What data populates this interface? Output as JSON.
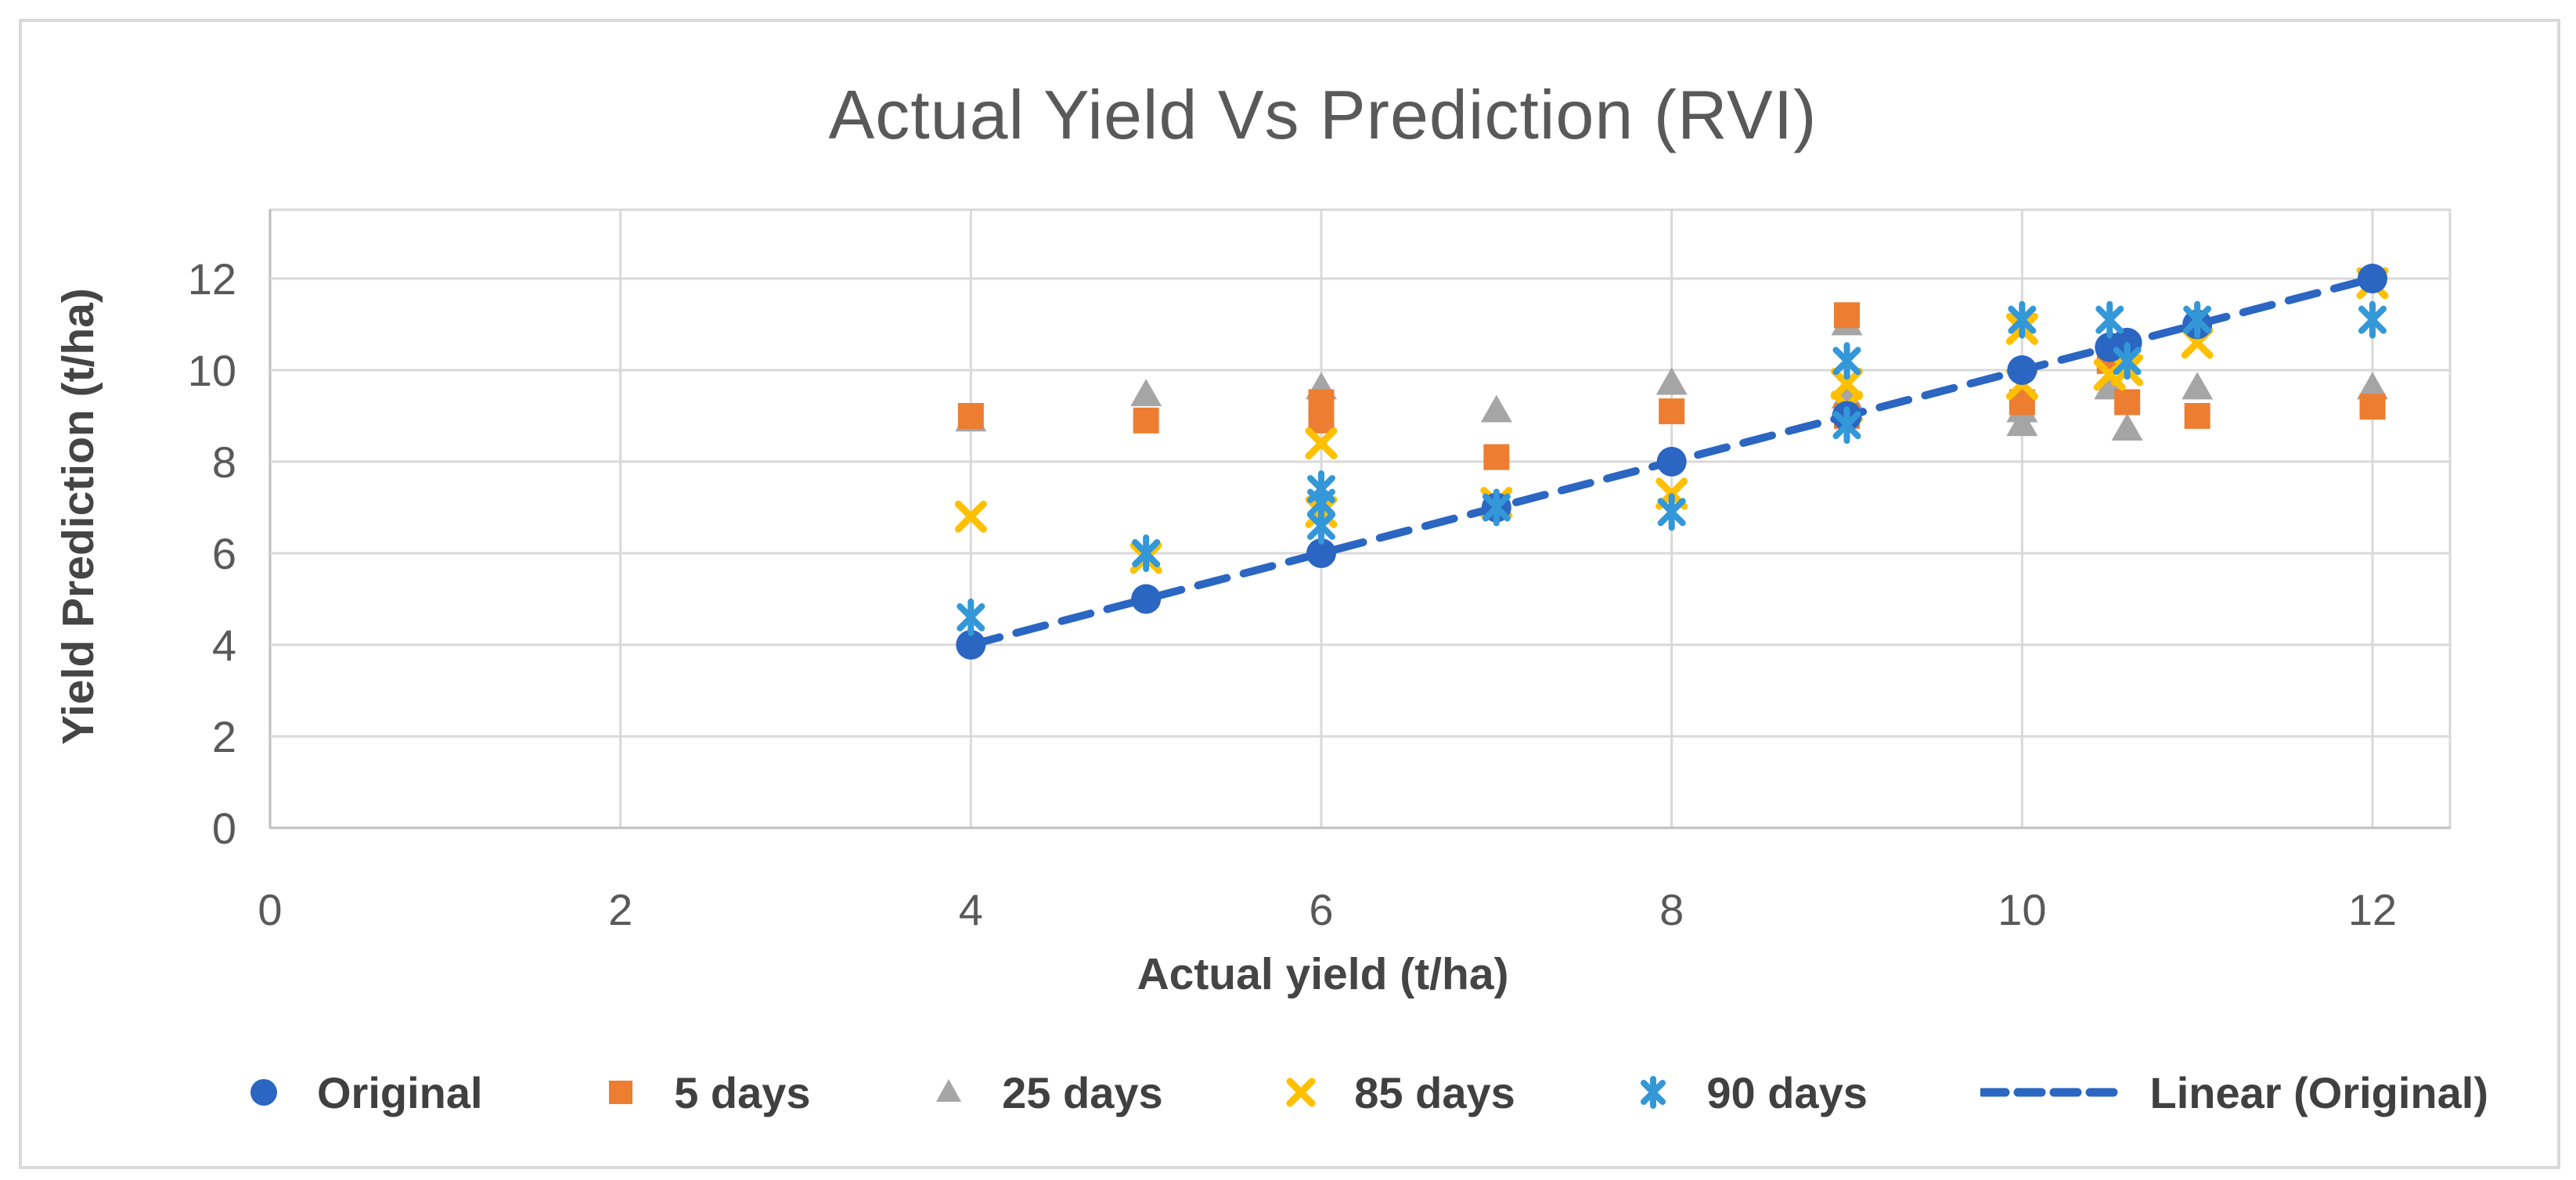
{
  "figure": {
    "background": "#FFFFFF",
    "border_color": "#D9D9D9",
    "gridline_color": "#D9D9D9",
    "axisline_color": "#BFBFBF",
    "tick_text_color": "#595959",
    "title_text_color": "#595959",
    "axis_title_color": "#454545",
    "legend_text_color": "#404040"
  },
  "chart_data": {
    "type": "scatter",
    "title": "Actual Yield Vs Prediction (RVI)",
    "xlabel": "Actual yield (t/ha)",
    "ylabel": "Yield Prediction (t/ha)",
    "xlim": [
      0,
      12.45
    ],
    "ylim": [
      0,
      13.5
    ],
    "x_ticks": [
      0,
      2,
      4,
      6,
      8,
      10,
      12
    ],
    "y_ticks": [
      0,
      2,
      4,
      6,
      8,
      10,
      12
    ],
    "grid": true,
    "legend_position": "bottom",
    "series": [
      {
        "name": "Original",
        "marker": "circle",
        "color": "#2A66C2",
        "points": [
          [
            4,
            4
          ],
          [
            5,
            5
          ],
          [
            6,
            6
          ],
          [
            7,
            7
          ],
          [
            8,
            8
          ],
          [
            9,
            9
          ],
          [
            10,
            10
          ],
          [
            10.5,
            10.5
          ],
          [
            10.6,
            10.6
          ],
          [
            11,
            11
          ],
          [
            12,
            12
          ]
        ]
      },
      {
        "name": "5 days",
        "marker": "square",
        "color": "#ED7D31",
        "points": [
          [
            4,
            9.0
          ],
          [
            5,
            8.9
          ],
          [
            6,
            9.3
          ],
          [
            6,
            8.9
          ],
          [
            7,
            8.1
          ],
          [
            8,
            9.1
          ],
          [
            9,
            11.2
          ],
          [
            9,
            9.0
          ],
          [
            10,
            9.3
          ],
          [
            10.5,
            10.2
          ],
          [
            10.6,
            9.3
          ],
          [
            11,
            9.0
          ],
          [
            12,
            9.2
          ]
        ]
      },
      {
        "name": "25 days",
        "marker": "triangle",
        "color": "#A5A5A5",
        "points": [
          [
            4,
            8.9
          ],
          [
            5,
            9.45
          ],
          [
            6,
            9.6
          ],
          [
            6,
            8.9
          ],
          [
            7,
            9.1
          ],
          [
            8,
            9.7
          ],
          [
            9,
            11.0
          ],
          [
            9,
            9.4
          ],
          [
            10,
            9.1
          ],
          [
            10,
            8.8
          ],
          [
            10.5,
            9.6
          ],
          [
            10.6,
            8.7
          ],
          [
            11,
            9.6
          ],
          [
            12,
            9.6
          ]
        ]
      },
      {
        "name": "85 days",
        "marker": "x",
        "color": "#FFC000",
        "points": [
          [
            4,
            6.8
          ],
          [
            5,
            5.9
          ],
          [
            6,
            8.4
          ],
          [
            6,
            6.9
          ],
          [
            7,
            7.1
          ],
          [
            8,
            7.3
          ],
          [
            9,
            9.7
          ],
          [
            9,
            9.2
          ],
          [
            10,
            10.9
          ],
          [
            10,
            9.7
          ],
          [
            10.5,
            9.9
          ],
          [
            10.6,
            10.0
          ],
          [
            11,
            10.6
          ],
          [
            12,
            11.9
          ]
        ]
      },
      {
        "name": "90 days",
        "marker": "star",
        "color": "#3397D8",
        "points": [
          [
            4,
            4.6
          ],
          [
            5,
            6.0
          ],
          [
            6,
            7.4
          ],
          [
            6,
            7.1
          ],
          [
            6,
            6.6
          ],
          [
            7,
            7.0
          ],
          [
            8,
            6.9
          ],
          [
            9,
            10.2
          ],
          [
            9,
            8.8
          ],
          [
            10,
            11.1
          ],
          [
            10.5,
            11.1
          ],
          [
            10.6,
            10.2
          ],
          [
            11,
            11.1
          ],
          [
            12,
            11.1
          ]
        ]
      }
    ],
    "trendline": {
      "name": "Linear (Original)",
      "color": "#2A66C2",
      "style": "dashed",
      "x1": 4,
      "y1": 4,
      "x2": 12,
      "y2": 12
    }
  }
}
